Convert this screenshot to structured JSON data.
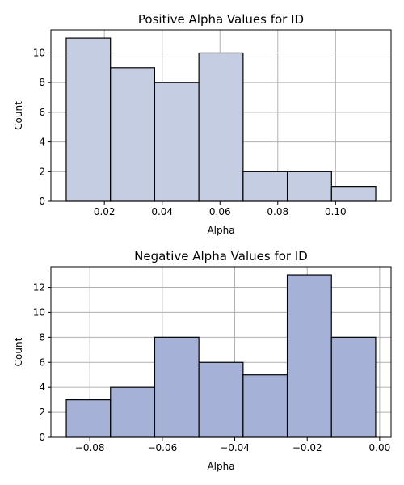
{
  "chart_data": [
    {
      "type": "bar",
      "title": "Positive Alpha Values for ID",
      "xlabel": "Alpha",
      "ylabel": "Count",
      "bin_edges": [
        0.0068,
        0.0221,
        0.0374,
        0.0527,
        0.068,
        0.0833,
        0.0986,
        0.1139
      ],
      "values": [
        11,
        9,
        8,
        10,
        2,
        2,
        1
      ],
      "xlim": [
        0.0015,
        0.1192
      ],
      "ylim": [
        0,
        11.55
      ],
      "xticks": [
        0.02,
        0.04,
        0.06,
        0.08,
        0.1
      ],
      "xtick_labels": [
        "0.02",
        "0.04",
        "0.06",
        "0.08",
        "0.10"
      ],
      "yticks": [
        0,
        2,
        4,
        6,
        8,
        10
      ],
      "ytick_labels": [
        "0",
        "2",
        "4",
        "6",
        "8",
        "10"
      ],
      "grid": true,
      "bar_color": "#c4cde2",
      "edge_color": "#000000",
      "grid_color": "#b0b0b0"
    },
    {
      "type": "bar",
      "title": "Negative Alpha Values for ID",
      "xlabel": "Alpha",
      "ylabel": "Count",
      "bin_edges": [
        -0.0865,
        -0.0743,
        -0.0621,
        -0.0499,
        -0.0377,
        -0.0255,
        -0.0133,
        -0.0011
      ],
      "values": [
        3,
        4,
        8,
        6,
        5,
        13,
        8
      ],
      "xlim": [
        -0.09075,
        0.00315
      ],
      "ylim": [
        0,
        13.65
      ],
      "xticks": [
        -0.08,
        -0.06,
        -0.04,
        -0.02,
        0.0
      ],
      "xtick_labels": [
        "−0.08",
        "−0.06",
        "−0.04",
        "−0.02",
        "0.00"
      ],
      "yticks": [
        0,
        2,
        4,
        6,
        8,
        10,
        12
      ],
      "ytick_labels": [
        "0",
        "2",
        "4",
        "6",
        "8",
        "10",
        "12"
      ],
      "grid": true,
      "bar_color": "#a5b1d7",
      "edge_color": "#000000",
      "grid_color": "#b0b0b0"
    }
  ]
}
